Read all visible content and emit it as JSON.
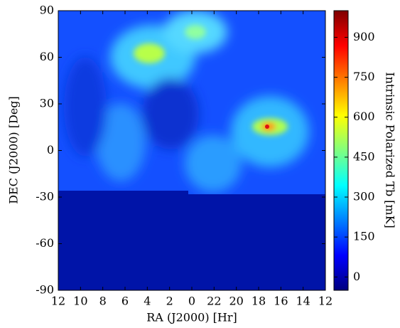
{
  "chart_data": {
    "type": "image",
    "xlabel": "RA (J2000) [Hr]",
    "ylabel": "DEC (J2000) [Deg]",
    "xlim": [
      12,
      -12
    ],
    "xticks": [
      12,
      10,
      8,
      6,
      4,
      2,
      0,
      {
        "value": -2,
        "label": "22"
      },
      {
        "value": -4,
        "label": "20"
      },
      {
        "value": -6,
        "label": "18"
      },
      {
        "value": -8,
        "label": "16"
      },
      {
        "value": -10,
        "label": "14"
      },
      {
        "value": -12,
        "label": "12"
      }
    ],
    "ylim": [
      -90,
      90
    ],
    "yticks": [
      -90,
      -60,
      -30,
      0,
      30,
      60,
      90
    ],
    "colormap": "jet",
    "colorbar": {
      "label": "Intrinsic Polarized Tb [mK]",
      "clim": [
        -50,
        1000
      ],
      "ticks": [
        0,
        150,
        300,
        450,
        600,
        750,
        900
      ]
    }
  }
}
